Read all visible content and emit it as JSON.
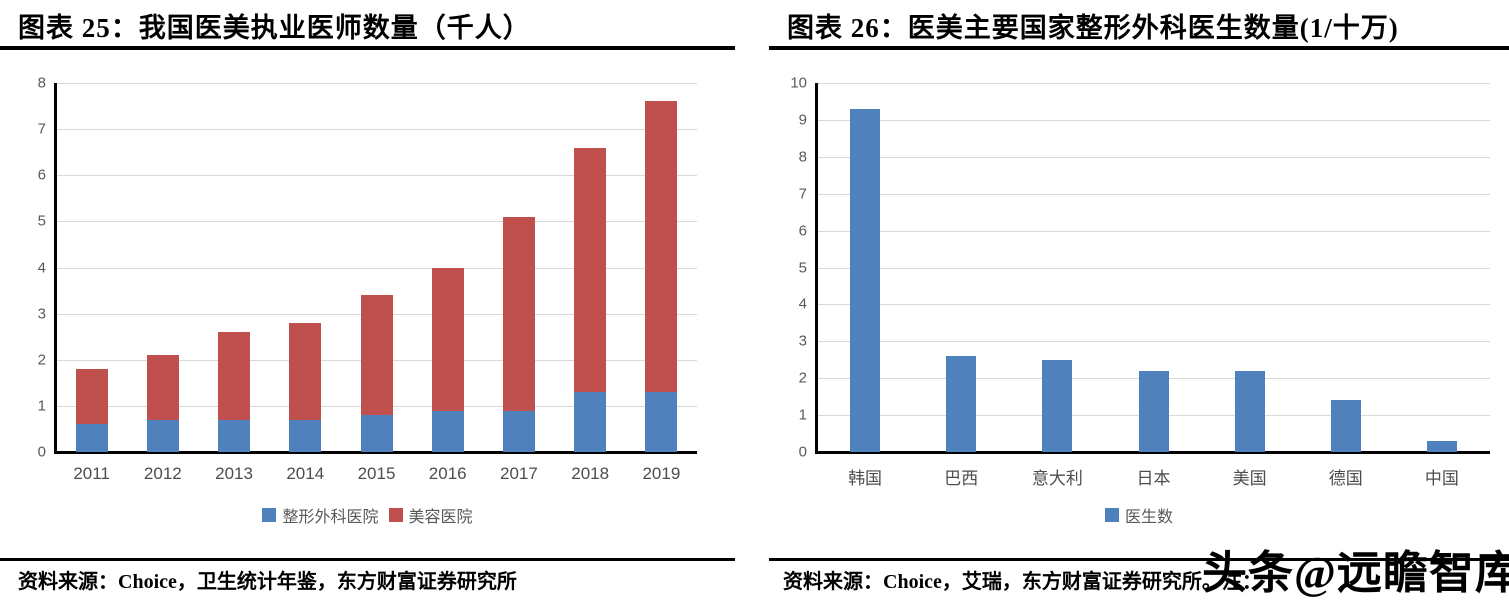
{
  "watermark": "头条@远瞻智库",
  "figures": [
    {
      "id": "25",
      "title": "图表 25：我国医美执业医师数量（千人）",
      "source": "资料来源：Choice，卫生统计年鉴，东方财富证券研究所",
      "legend": [
        {
          "label": "整形外科医院",
          "color": "#4F81BD"
        },
        {
          "label": "美容医院",
          "color": "#C0504D"
        }
      ]
    },
    {
      "id": "26",
      "title": "图表 26：医美主要国家整形外科医生数量(1/十万)",
      "source": "资料来源：Choice，艾瑞，东方财富证券研究所。注：",
      "legend": [
        {
          "label": "医生数",
          "color": "#4F81BD"
        }
      ]
    }
  ],
  "chart_data": [
    {
      "type": "bar",
      "stacked": true,
      "title": "我国医美执业医师数量（千人）",
      "categories": [
        "2011",
        "2012",
        "2013",
        "2014",
        "2015",
        "2016",
        "2017",
        "2018",
        "2019"
      ],
      "series": [
        {
          "name": "整形外科医院",
          "color": "#4F81BD",
          "values": [
            0.6,
            0.7,
            0.7,
            0.7,
            0.8,
            0.9,
            0.9,
            1.3,
            1.3
          ]
        },
        {
          "name": "美容医院",
          "color": "#C0504D",
          "values": [
            1.2,
            1.4,
            1.9,
            2.1,
            2.6,
            3.1,
            4.2,
            5.3,
            6.3
          ]
        }
      ],
      "stack_totals": [
        1.8,
        2.1,
        2.6,
        2.8,
        3.4,
        4.0,
        5.1,
        6.6,
        7.6
      ],
      "ylim": [
        0,
        8
      ],
      "ystep": 1,
      "grid": true,
      "legend_position": "bottom"
    },
    {
      "type": "bar",
      "stacked": false,
      "title": "医美主要国家整形外科医生数量(1/十万)",
      "categories": [
        "韩国",
        "巴西",
        "意大利",
        "日本",
        "美国",
        "德国",
        "中国"
      ],
      "series": [
        {
          "name": "医生数",
          "color": "#4F81BD",
          "values": [
            9.3,
            2.6,
            2.5,
            2.2,
            2.2,
            1.4,
            0.3
          ]
        }
      ],
      "ylim": [
        0,
        10
      ],
      "ystep": 1,
      "grid": true,
      "legend_position": "bottom"
    }
  ],
  "colors": {
    "bar_blue": "#4F81BD",
    "bar_red": "#C0504D",
    "gridline": "#D9D9D9",
    "axis": "#000000",
    "tick_label": "#595959"
  }
}
